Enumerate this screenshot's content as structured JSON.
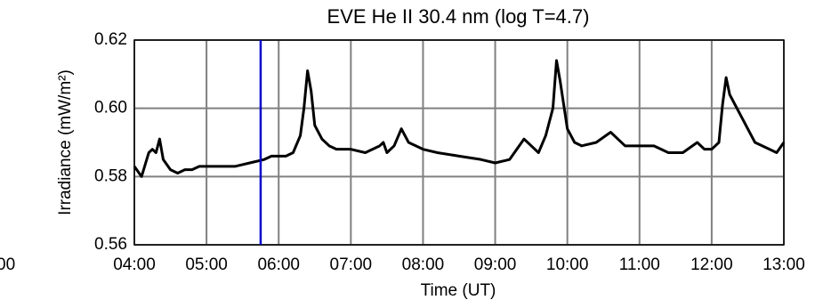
{
  "chart_data": {
    "type": "line",
    "title": "EVE He II 30.4 nm (log T=4.7)",
    "x_label": "Time (UT)",
    "y_label": "Irradiance (mW/m²)",
    "clipped_text": "00",
    "xlim": [
      4,
      13
    ],
    "xticks": [
      {
        "value": 4,
        "label": "04:00"
      },
      {
        "value": 5,
        "label": "05:00"
      },
      {
        "value": 6,
        "label": "06:00"
      },
      {
        "value": 7,
        "label": "07:00"
      },
      {
        "value": 8,
        "label": "08:00"
      },
      {
        "value": 9,
        "label": "09:00"
      },
      {
        "value": 10,
        "label": "10:00"
      },
      {
        "value": 11,
        "label": "11:00"
      },
      {
        "value": 12,
        "label": "12:00"
      },
      {
        "value": 13,
        "label": "13:00"
      }
    ],
    "ylim": [
      0.56,
      0.62
    ],
    "yticks": [
      0.56,
      0.58,
      {
        "value": 0.6,
        "label": "0.60"
      },
      0.62
    ],
    "grid": true,
    "marker_x": 5.75,
    "marker_color": "#0000cc",
    "x": [
      4.0,
      4.1,
      4.2,
      4.25,
      4.3,
      4.35,
      4.4,
      4.5,
      4.6,
      4.7,
      4.8,
      4.9,
      5.0,
      5.2,
      5.4,
      5.6,
      5.8,
      5.9,
      6.0,
      6.1,
      6.2,
      6.3,
      6.35,
      6.4,
      6.45,
      6.5,
      6.6,
      6.7,
      6.8,
      7.0,
      7.2,
      7.4,
      7.45,
      7.5,
      7.6,
      7.7,
      7.8,
      8.0,
      8.2,
      8.5,
      8.8,
      9.0,
      9.2,
      9.3,
      9.4,
      9.5,
      9.6,
      9.7,
      9.8,
      9.85,
      9.9,
      10.0,
      10.1,
      10.2,
      10.4,
      10.6,
      10.7,
      10.8,
      11.0,
      11.2,
      11.4,
      11.6,
      11.8,
      11.9,
      12.0,
      12.1,
      12.15,
      12.2,
      12.25,
      12.3,
      12.4,
      12.5,
      12.6,
      12.8,
      12.9,
      13.0
    ],
    "series": [
      {
        "color": "#000000",
        "values": [
          0.583,
          0.58,
          0.587,
          0.588,
          0.587,
          0.591,
          0.585,
          0.582,
          0.581,
          0.582,
          0.582,
          0.583,
          0.583,
          0.583,
          0.583,
          0.584,
          0.585,
          0.586,
          0.586,
          0.586,
          0.587,
          0.592,
          0.6,
          0.611,
          0.605,
          0.595,
          0.591,
          0.589,
          0.588,
          0.588,
          0.587,
          0.589,
          0.59,
          0.587,
          0.589,
          0.594,
          0.59,
          0.588,
          0.587,
          0.586,
          0.585,
          0.584,
          0.585,
          0.588,
          0.591,
          0.589,
          0.587,
          0.592,
          0.6,
          0.614,
          0.608,
          0.594,
          0.59,
          0.589,
          0.59,
          0.593,
          0.591,
          0.589,
          0.589,
          0.589,
          0.587,
          0.587,
          0.59,
          0.588,
          0.588,
          0.59,
          0.601,
          0.609,
          0.604,
          0.602,
          0.598,
          0.594,
          0.59,
          0.588,
          0.587,
          0.59
        ]
      }
    ]
  }
}
